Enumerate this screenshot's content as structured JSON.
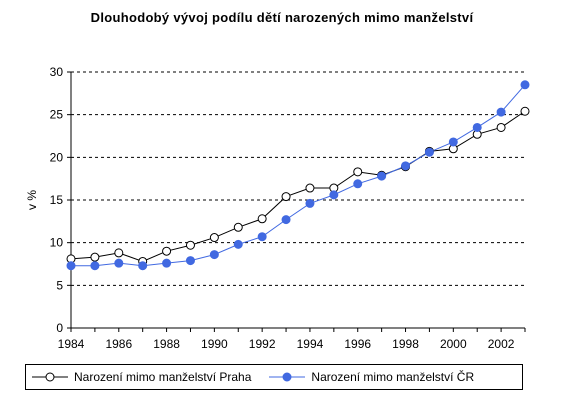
{
  "chart_data": {
    "type": "line",
    "title": "Dlouhodobý vývoj podílu dětí narozených mimo manželství",
    "xlabel": "",
    "ylabel": "v %",
    "xlim": [
      1984,
      2003
    ],
    "ylim": [
      0,
      30
    ],
    "yticks": [
      0,
      5,
      10,
      15,
      20,
      25,
      30
    ],
    "xticks": [
      1984,
      1986,
      1988,
      1990,
      1992,
      1994,
      1996,
      1998,
      2000,
      2002
    ],
    "grid": "horizontal-dashed",
    "legend_position": "bottom",
    "x": [
      1984,
      1985,
      1986,
      1987,
      1988,
      1989,
      1990,
      1991,
      1992,
      1993,
      1994,
      1995,
      1996,
      1997,
      1998,
      1999,
      2000,
      2001,
      2002,
      2003
    ],
    "series": [
      {
        "name": "Narození mimo manželství Praha",
        "color": "#000000",
        "marker": "open-circle",
        "values": [
          8.1,
          8.3,
          8.8,
          7.8,
          9.0,
          9.7,
          10.6,
          11.8,
          12.8,
          15.4,
          16.4,
          16.4,
          18.3,
          17.9,
          18.9,
          20.7,
          21.0,
          22.7,
          23.5,
          25.4
        ]
      },
      {
        "name": "Narození mimo manželství ČR",
        "color": "#4169e1",
        "marker": "filled-circle",
        "values": [
          7.3,
          7.3,
          7.6,
          7.3,
          7.6,
          7.9,
          8.6,
          9.8,
          10.7,
          12.7,
          14.6,
          15.6,
          16.9,
          17.8,
          19.0,
          20.6,
          21.8,
          23.5,
          25.3,
          28.5
        ]
      }
    ]
  }
}
